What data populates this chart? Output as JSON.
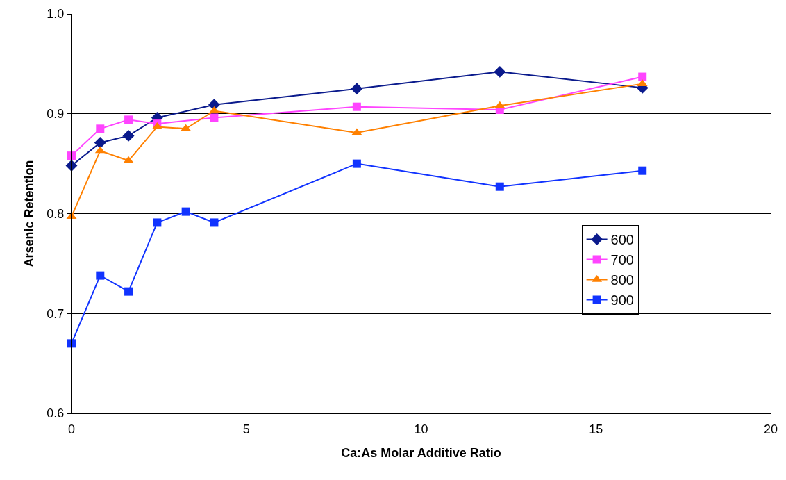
{
  "chart_data": {
    "type": "line",
    "xlabel": "Ca:As Molar Additive Ratio",
    "ylabel": "Arsenic Retention",
    "xlim": [
      0,
      20
    ],
    "xticks": [
      0,
      5,
      10,
      15,
      20
    ],
    "ylim": [
      0.6,
      1.0
    ],
    "yticks": [
      {
        "value": 0.6,
        "label": "0.6"
      },
      {
        "value": 0.7,
        "label": "0.7"
      },
      {
        "value": 0.8,
        "label": "0.8"
      },
      {
        "value": 0.9,
        "label": "0.9"
      },
      {
        "value": 1.0,
        "label": "1.0"
      }
    ],
    "grid": "y",
    "legend": "right",
    "line_style": "solid",
    "series": [
      {
        "name": "600",
        "color": "#0a1a8c",
        "marker": "diamond",
        "x": [
          0,
          0.82,
          1.63,
          2.45,
          4.08,
          8.16,
          12.25,
          16.33
        ],
        "values": [
          0.848,
          0.871,
          0.878,
          0.896,
          0.909,
          0.925,
          0.942,
          0.926
        ]
      },
      {
        "name": "700",
        "color": "#ff44ff",
        "marker": "square",
        "x": [
          0,
          0.82,
          1.63,
          2.45,
          4.08,
          8.16,
          12.25,
          16.33
        ],
        "values": [
          0.858,
          0.885,
          0.894,
          0.89,
          0.896,
          0.907,
          0.904,
          0.937
        ]
      },
      {
        "name": "800",
        "color": "#ff8000",
        "marker": "triangle",
        "x": [
          0,
          0.82,
          1.63,
          2.45,
          3.27,
          4.08,
          8.16,
          12.25,
          16.33
        ],
        "values": [
          0.797,
          0.863,
          0.853,
          0.887,
          0.885,
          0.903,
          0.881,
          0.908,
          0.93
        ]
      },
      {
        "name": "900",
        "color": "#1133ff",
        "marker": "square",
        "x": [
          0,
          0.82,
          1.63,
          2.45,
          3.27,
          4.08,
          8.16,
          12.25,
          16.33
        ],
        "values": [
          0.67,
          0.738,
          0.722,
          0.791,
          0.802,
          0.791,
          0.85,
          0.827,
          0.843
        ]
      }
    ]
  }
}
